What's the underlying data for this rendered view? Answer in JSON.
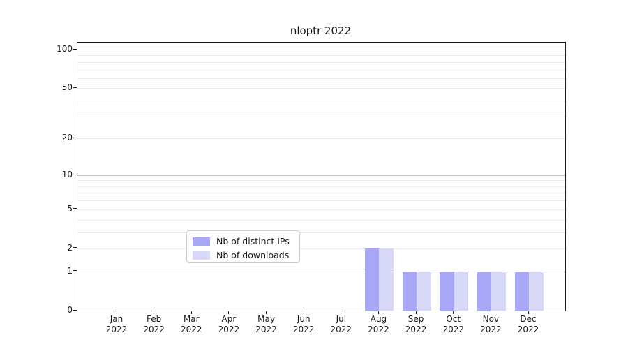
{
  "chart_data": {
    "type": "bar",
    "title": "nloptr 2022",
    "categories": [
      {
        "month": "Jan",
        "year": "2022"
      },
      {
        "month": "Feb",
        "year": "2022"
      },
      {
        "month": "Mar",
        "year": "2022"
      },
      {
        "month": "Apr",
        "year": "2022"
      },
      {
        "month": "May",
        "year": "2022"
      },
      {
        "month": "Jun",
        "year": "2022"
      },
      {
        "month": "Jul",
        "year": "2022"
      },
      {
        "month": "Aug",
        "year": "2022"
      },
      {
        "month": "Sep",
        "year": "2022"
      },
      {
        "month": "Oct",
        "year": "2022"
      },
      {
        "month": "Nov",
        "year": "2022"
      },
      {
        "month": "Dec",
        "year": "2022"
      }
    ],
    "series": [
      {
        "name": "Nb of distinct IPs",
        "color": "#a8a8f7",
        "values": [
          0,
          0,
          0,
          0,
          0,
          0,
          0,
          2,
          1,
          1,
          1,
          1
        ]
      },
      {
        "name": "Nb of downloads",
        "color": "#d8d8f9",
        "values": [
          0,
          0,
          0,
          0,
          0,
          0,
          0,
          2,
          1,
          1,
          1,
          1
        ]
      }
    ],
    "y_axis": {
      "scale": "log1p",
      "ylim": [
        0,
        100
      ],
      "ticks": [
        0,
        1,
        2,
        5,
        10,
        20,
        50,
        100
      ],
      "major_gridlines": [
        1,
        10,
        100
      ],
      "minor_gridlines": [
        2,
        3,
        4,
        5,
        6,
        7,
        8,
        9,
        20,
        30,
        40,
        50,
        60,
        70,
        80,
        90
      ]
    },
    "xlabel": "",
    "ylabel": "",
    "grid": true,
    "legend_position": "lower center-left inside plot"
  },
  "colors": {
    "minor_grid": "#ebebeb",
    "major_grid": "#c2c2c2",
    "spine": "#1b1b1b",
    "text": "#1a1a1a",
    "legend_border": "#cccccc"
  }
}
